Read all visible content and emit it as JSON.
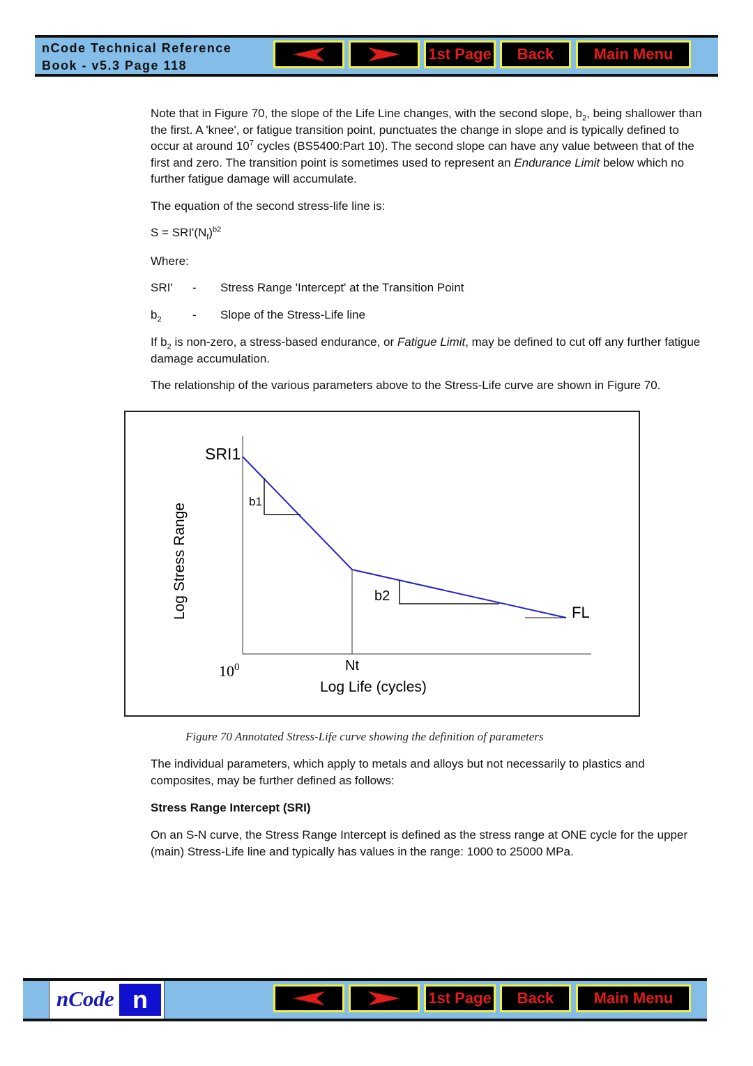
{
  "header": {
    "title_line1": "nCode Technical Reference",
    "title_line2": "Book - v5.3  Page 118"
  },
  "nav": {
    "prev_icon": "left-arrow-icon",
    "next_icon": "right-arrow-icon",
    "first_page": "1st Page",
    "back": "Back",
    "main_menu": "Main Menu"
  },
  "colors": {
    "bar": "#84bde8",
    "button_bg": "#000000",
    "button_border": "#f2f03a",
    "button_text": "#e21b1b",
    "curve": "#2222cc"
  },
  "body": {
    "p1_a": "Note that in Figure 70, the slope of the Life Line changes, with the second slope, b",
    "p1_sub": "2",
    "p1_b": ", being shallower than the first. A 'knee', or fatigue transition point, punctuates the change in slope and is typically defined to occur at around 10",
    "p1_sup": "7",
    "p1_c": " cycles (BS5400:Part 10). The second slope can have any value between that of the first and zero. The transition point is sometimes used to represent an ",
    "p1_it": "Endurance Limit",
    "p1_d": " below which no further fatigue damage will accumulate.",
    "p2": "The equation of the second stress-life line is:",
    "eq_a": "S = SRI'(N",
    "eq_sub": "f",
    "eq_b": ")",
    "eq_sup": "b2",
    "where": "Where:",
    "defs": [
      {
        "sym": "SRI'",
        "dash": "-",
        "desc": "Stress Range 'Intercept' at the Transition Point"
      },
      {
        "sym": "b",
        "sym_sub": "2",
        "dash": "-",
        "desc": "Slope of the Stress-Life line"
      }
    ],
    "p3_a": "If b",
    "p3_sub": "2",
    "p3_b": " is non-zero, a stress-based endurance, or ",
    "p3_it": "Fatigue Limit",
    "p3_c": ", may be defined to cut off any further fatigue damage accumulation.",
    "p4": "The relationship of the various parameters above to the Stress-Life curve are shown in Figure 70.",
    "caption": "Figure 70   Annotated Stress-Life curve  showing the definition of parameters",
    "p5": "The individual parameters, which apply to metals and alloys but not necessarily to plastics and composites, may be further defined as follows:",
    "h1": "Stress Range Intercept (SRI)",
    "p6": "On an S-N curve, the Stress Range Intercept is defined as the stress range at ONE cycle for the upper (main) Stress-Life line and typically has values in the range: 1000 to 25000 MPa."
  },
  "figure": {
    "ylabel": "Log Stress Range",
    "xlabel": "Log  Life (cycles)",
    "sri": "SRI1",
    "b1": "b1",
    "b2": "b2",
    "fl": "FL",
    "nt": "Nt",
    "origin_base": "10",
    "origin_exp": "0"
  },
  "footer": {
    "logo_text": "nCode"
  }
}
